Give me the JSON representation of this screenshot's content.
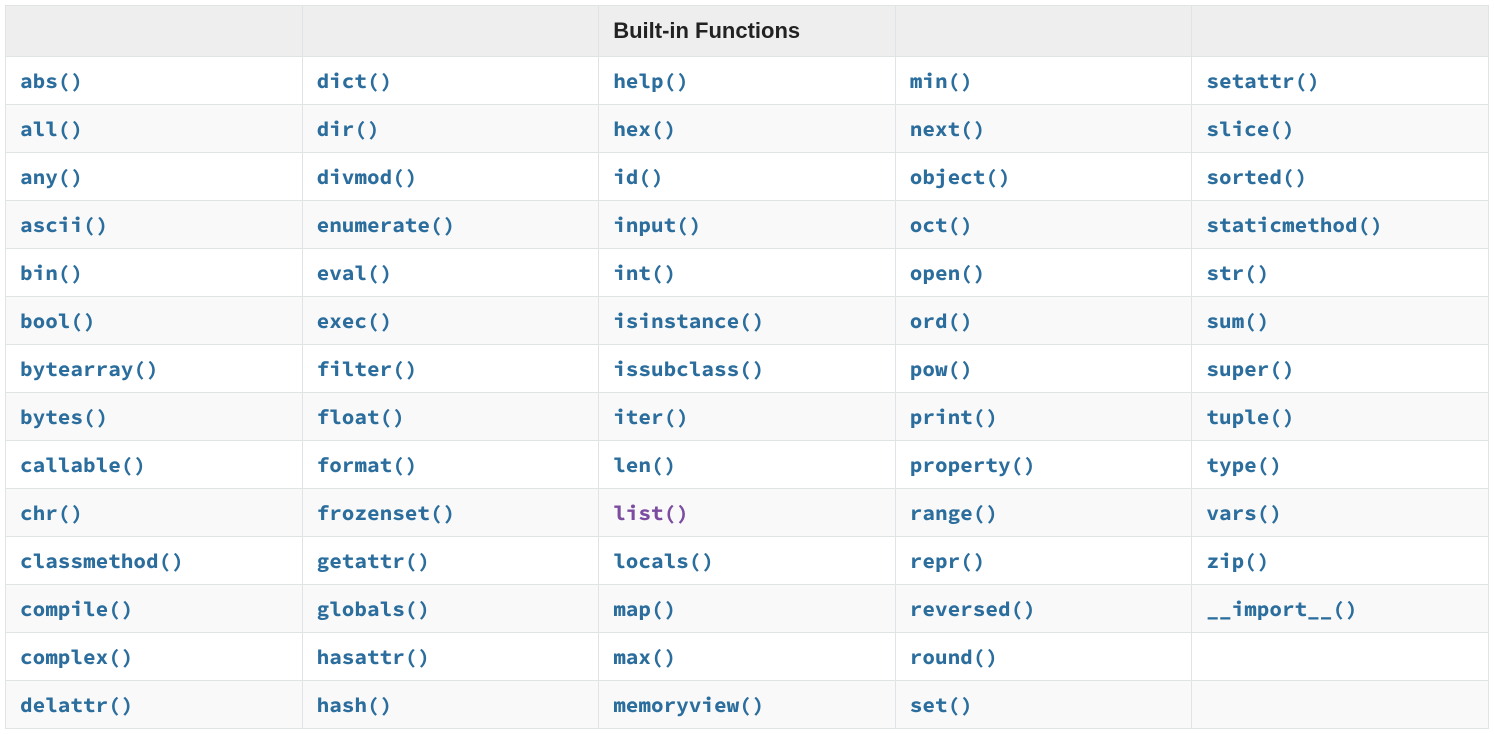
{
  "table": {
    "title": "Built-in Functions",
    "link_color": "#2b6d9c",
    "visited_color": "#7b4ca0",
    "header_bg": "#eeeeee",
    "border_color": "#e1e4e5",
    "columns": 5,
    "rows": [
      [
        "abs()",
        "dict()",
        "help()",
        "min()",
        "setattr()"
      ],
      [
        "all()",
        "dir()",
        "hex()",
        "next()",
        "slice()"
      ],
      [
        "any()",
        "divmod()",
        "id()",
        "object()",
        "sorted()"
      ],
      [
        "ascii()",
        "enumerate()",
        "input()",
        "oct()",
        "staticmethod()"
      ],
      [
        "bin()",
        "eval()",
        "int()",
        "open()",
        "str()"
      ],
      [
        "bool()",
        "exec()",
        "isinstance()",
        "ord()",
        "sum()"
      ],
      [
        "bytearray()",
        "filter()",
        "issubclass()",
        "pow()",
        "super()"
      ],
      [
        "bytes()",
        "float()",
        "iter()",
        "print()",
        "tuple()"
      ],
      [
        "callable()",
        "format()",
        "len()",
        "property()",
        "type()"
      ],
      [
        "chr()",
        "frozenset()",
        "list()",
        "range()",
        "vars()"
      ],
      [
        "classmethod()",
        "getattr()",
        "locals()",
        "repr()",
        "zip()"
      ],
      [
        "compile()",
        "globals()",
        "map()",
        "reversed()",
        "__import__()"
      ],
      [
        "complex()",
        "hasattr()",
        "max()",
        "round()",
        ""
      ],
      [
        "delattr()",
        "hash()",
        "memoryview()",
        "set()",
        ""
      ]
    ],
    "visited_cells": [
      {
        "row": 9,
        "col": 2
      }
    ]
  }
}
